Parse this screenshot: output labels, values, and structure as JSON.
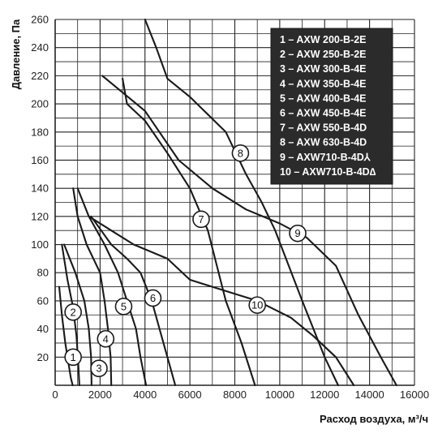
{
  "chart_data": {
    "type": "line",
    "xlabel": "Расход воздуха, м³/ч",
    "ylabel": "Давление, Па",
    "xlim": [
      0,
      16000
    ],
    "ylim": [
      0,
      260
    ],
    "xticks": [
      0,
      2000,
      4000,
      6000,
      8000,
      10000,
      12000,
      14000,
      16000
    ],
    "yticks": [
      20,
      40,
      60,
      80,
      100,
      120,
      140,
      160,
      180,
      200,
      220,
      240,
      260
    ],
    "x_minor_step": 1000,
    "y_step": 10,
    "grid": true,
    "legend_position": "top-right",
    "legend": [
      "1 – AXW 200-B-2E",
      "2 – AXW 250-B-2E",
      "3 – AXW 300-B-4E",
      "4 – AXW 350-B-4E",
      "5 – AXW 400-B-4E",
      "6 – AXW 450-B-4E",
      "7 – AXW 550-B-4D",
      "8 – AXW 630-B-4D",
      "9 – AXW710-B-4D⅄",
      "10 – AXW710-B-4D∆"
    ],
    "series": [
      {
        "label": "1",
        "marker": [
          800,
          20
        ],
        "points": [
          [
            180,
            70
          ],
          [
            300,
            50
          ],
          [
            450,
            30
          ],
          [
            600,
            15
          ],
          [
            700,
            5
          ],
          [
            780,
            0
          ]
        ]
      },
      {
        "label": "2",
        "marker": [
          800,
          52
        ],
        "points": [
          [
            300,
            100
          ],
          [
            550,
            75
          ],
          [
            800,
            55
          ],
          [
            950,
            35
          ],
          [
            1030,
            15
          ],
          [
            1080,
            0
          ]
        ]
      },
      {
        "label": "3",
        "marker": [
          1950,
          12
        ],
        "points": [
          [
            400,
            100
          ],
          [
            900,
            80
          ],
          [
            1300,
            60
          ],
          [
            1500,
            40
          ],
          [
            1600,
            20
          ],
          [
            1620,
            0
          ]
        ]
      },
      {
        "label": "4",
        "marker": [
          2250,
          33
        ],
        "points": [
          [
            800,
            140
          ],
          [
            1000,
            120
          ],
          [
            1400,
            100
          ],
          [
            2000,
            80
          ],
          [
            2200,
            60
          ],
          [
            2350,
            40
          ],
          [
            2470,
            20
          ],
          [
            2500,
            0
          ]
        ]
      },
      {
        "label": "5",
        "marker": [
          3050,
          56
        ],
        "points": [
          [
            1000,
            140
          ],
          [
            1500,
            120
          ],
          [
            2200,
            100
          ],
          [
            2800,
            80
          ],
          [
            3200,
            60
          ],
          [
            3600,
            40
          ],
          [
            3800,
            20
          ],
          [
            4050,
            0
          ]
        ]
      },
      {
        "label": "6",
        "marker": [
          4350,
          62
        ],
        "points": [
          [
            1600,
            120
          ],
          [
            2500,
            100
          ],
          [
            3200,
            90
          ],
          [
            3800,
            80
          ],
          [
            4300,
            60
          ],
          [
            4650,
            40
          ],
          [
            5000,
            20
          ],
          [
            5350,
            0
          ]
        ]
      },
      {
        "label": "7",
        "marker": [
          6500,
          118
        ],
        "points": [
          [
            3000,
            218
          ],
          [
            3200,
            200
          ],
          [
            4000,
            188
          ],
          [
            5000,
            165
          ],
          [
            6000,
            140
          ],
          [
            6800,
            110
          ],
          [
            7600,
            60
          ],
          [
            8300,
            30
          ],
          [
            8900,
            0
          ]
        ]
      },
      {
        "label": "8",
        "marker": [
          8250,
          165
        ],
        "points": [
          [
            4000,
            260
          ],
          [
            4500,
            240
          ],
          [
            5000,
            218
          ],
          [
            6000,
            205
          ],
          [
            7600,
            180
          ],
          [
            8500,
            150
          ],
          [
            9200,
            130
          ],
          [
            9800,
            110
          ],
          [
            11000,
            60
          ],
          [
            12000,
            20
          ],
          [
            12600,
            0
          ]
        ]
      },
      {
        "label": "9",
        "marker": [
          10800,
          108
        ],
        "points": [
          [
            2100,
            220
          ],
          [
            4000,
            195
          ],
          [
            5500,
            160
          ],
          [
            7000,
            140
          ],
          [
            8500,
            125
          ],
          [
            10000,
            115
          ],
          [
            11200,
            105
          ],
          [
            12500,
            85
          ],
          [
            13500,
            50
          ],
          [
            14500,
            20
          ],
          [
            15200,
            0
          ]
        ]
      },
      {
        "label": "10",
        "marker": [
          9000,
          57
        ],
        "points": [
          [
            1500,
            120
          ],
          [
            2500,
            110
          ],
          [
            3500,
            100
          ],
          [
            5000,
            90
          ],
          [
            6000,
            75
          ],
          [
            7000,
            70
          ],
          [
            9000,
            60
          ],
          [
            10500,
            48
          ],
          [
            11500,
            35
          ],
          [
            12500,
            20
          ],
          [
            13300,
            0
          ]
        ]
      }
    ]
  }
}
